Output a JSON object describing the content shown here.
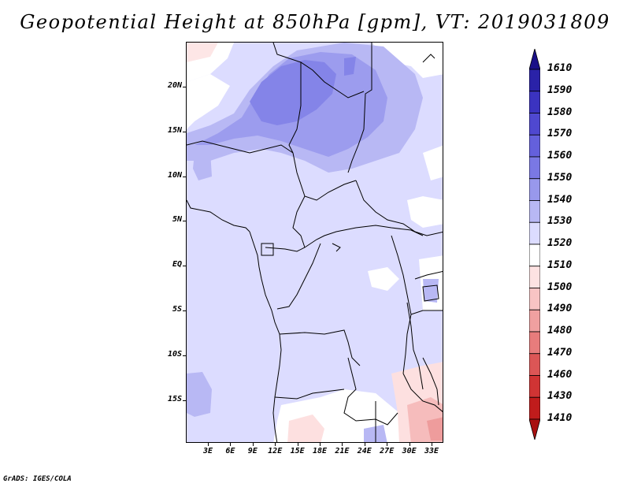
{
  "title": "Geopotential Height at 850hPa [gpm], VT: 2019031809",
  "footer": "GrADS: IGES/COLA",
  "lat_labels": [
    "20N",
    "15N",
    "10N",
    "5N",
    "EQ",
    "5S",
    "10S",
    "15S"
  ],
  "lon_labels": [
    "3E",
    "6E",
    "9E",
    "12E",
    "15E",
    "18E",
    "21E",
    "24E",
    "27E",
    "30E",
    "33E"
  ],
  "colorbar": {
    "levels": [
      "1610",
      "1590",
      "1580",
      "1570",
      "1560",
      "1550",
      "1540",
      "1530",
      "1520",
      "1510",
      "1500",
      "1490",
      "1480",
      "1470",
      "1460",
      "1430",
      "1410"
    ],
    "colors_top_to_bottom": [
      "#1a1088",
      "#2a22a8",
      "#3b33c0",
      "#4f48d0",
      "#6460dc",
      "#7a78e4",
      "#9898ec",
      "#b8b8f4",
      "#dcdcff",
      "#ffffff",
      "#fde2e2",
      "#f8c4c4",
      "#f0a0a0",
      "#e87c7c",
      "#dc5656",
      "#d03434",
      "#c01c1c",
      "#a81010"
    ]
  },
  "map": {
    "field_colors": {
      "low_1520": "#dcdcff",
      "mid_1530": "#b8b8f4",
      "mid_1540": "#9c9cee",
      "high_1550": "#8484e8",
      "white_1510": "#ffffff",
      "pink_1500": "#fde0e0",
      "pink_1490": "#f6bcbc",
      "pink_1480": "#ee9c9c"
    }
  }
}
